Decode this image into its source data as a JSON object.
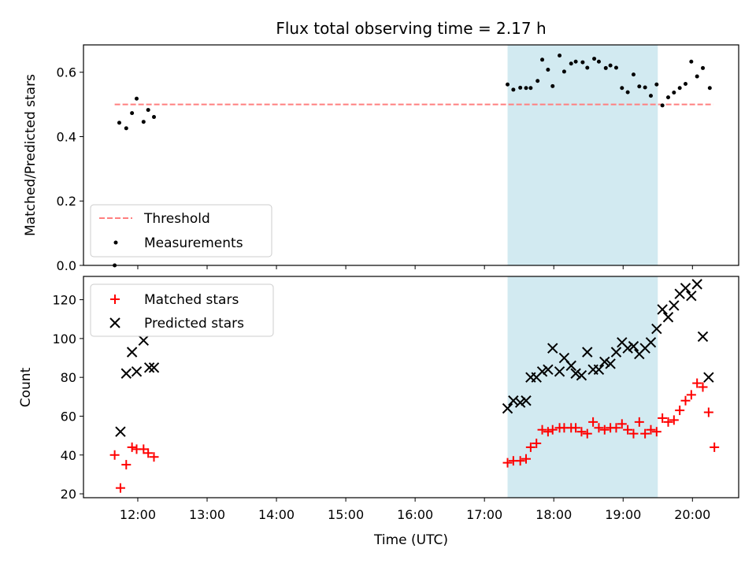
{
  "chart_data": [
    {
      "type": "scatter",
      "title": "Flux total observing time = 2.17 h",
      "ylabel": "Matched/Predicted stars",
      "xlabel": "",
      "xlim": [
        "11:13",
        "20:40"
      ],
      "ylim": [
        0,
        0.685
      ],
      "yticks": [
        "0.0",
        "0.2",
        "0.4",
        "0.6"
      ],
      "shaded_interval": [
        "17:20",
        "19:30"
      ],
      "threshold": {
        "name": "Threshold",
        "value": 0.5,
        "x_range": [
          "11:40",
          "20:18"
        ],
        "color": "#ff7f7f"
      },
      "legend": {
        "placement": "lower-left",
        "entries": [
          "Threshold",
          "Measurements"
        ]
      },
      "series": [
        {
          "name": "Measurements",
          "color": "#000000",
          "points": [
            [
              "11:40",
              0.0
            ],
            [
              "11:44",
              0.443
            ],
            [
              "11:50",
              0.426
            ],
            [
              "11:55",
              0.473
            ],
            [
              "11:59",
              0.518
            ],
            [
              "12:05",
              0.446
            ],
            [
              "12:09",
              0.483
            ],
            [
              "12:14",
              0.461
            ],
            [
              "17:20",
              0.562
            ],
            [
              "17:25",
              0.546
            ],
            [
              "17:31",
              0.552
            ],
            [
              "17:36",
              0.551
            ],
            [
              "17:40",
              0.551
            ],
            [
              "17:46",
              0.573
            ],
            [
              "17:50",
              0.639
            ],
            [
              "17:55",
              0.608
            ],
            [
              "17:59",
              0.557
            ],
            [
              "18:05",
              0.652
            ],
            [
              "18:09",
              0.602
            ],
            [
              "18:15",
              0.627
            ],
            [
              "18:19",
              0.633
            ],
            [
              "18:25",
              0.631
            ],
            [
              "18:29",
              0.614
            ],
            [
              "18:35",
              0.642
            ],
            [
              "18:39",
              0.633
            ],
            [
              "18:45",
              0.613
            ],
            [
              "18:49",
              0.621
            ],
            [
              "18:54",
              0.614
            ],
            [
              "18:59",
              0.551
            ],
            [
              "19:04",
              0.538
            ],
            [
              "19:09",
              0.593
            ],
            [
              "19:14",
              0.556
            ],
            [
              "19:19",
              0.553
            ],
            [
              "19:24",
              0.527
            ],
            [
              "19:29",
              0.562
            ],
            [
              "19:34",
              0.497
            ],
            [
              "19:39",
              0.522
            ],
            [
              "19:44",
              0.537
            ],
            [
              "19:49",
              0.551
            ],
            [
              "19:54",
              0.564
            ],
            [
              "19:59",
              0.633
            ],
            [
              "20:04",
              0.587
            ],
            [
              "20:09",
              0.613
            ],
            [
              "20:15",
              0.551
            ]
          ]
        }
      ]
    },
    {
      "type": "scatter",
      "title": "",
      "ylabel": "Count",
      "xlabel": "Time (UTC)",
      "xlim": [
        "11:13",
        "20:40"
      ],
      "ylim": [
        18,
        132
      ],
      "yticks": [
        "20",
        "40",
        "60",
        "80",
        "100",
        "120"
      ],
      "xticks": [
        "12:00",
        "13:00",
        "14:00",
        "15:00",
        "16:00",
        "17:00",
        "18:00",
        "19:00",
        "20:00"
      ],
      "shaded_interval": [
        "17:20",
        "19:30"
      ],
      "legend": {
        "placement": "upper-left",
        "entries": [
          "Matched stars",
          "Predicted stars"
        ]
      },
      "series": [
        {
          "name": "Matched stars",
          "marker": "+",
          "color": "#ff0000",
          "points": [
            [
              "11:40",
              40
            ],
            [
              "11:45",
              23
            ],
            [
              "11:50",
              35
            ],
            [
              "11:55",
              44
            ],
            [
              "11:59",
              43
            ],
            [
              "12:05",
              43
            ],
            [
              "12:09",
              41
            ],
            [
              "12:14",
              39
            ],
            [
              "17:20",
              36
            ],
            [
              "17:25",
              37
            ],
            [
              "17:31",
              37
            ],
            [
              "17:36",
              38
            ],
            [
              "17:40",
              44
            ],
            [
              "17:45",
              46
            ],
            [
              "17:50",
              53
            ],
            [
              "17:55",
              52
            ],
            [
              "17:59",
              53
            ],
            [
              "18:05",
              54
            ],
            [
              "18:09",
              54
            ],
            [
              "18:15",
              54
            ],
            [
              "18:19",
              54
            ],
            [
              "18:24",
              52
            ],
            [
              "18:29",
              51
            ],
            [
              "18:34",
              57
            ],
            [
              "18:39",
              54
            ],
            [
              "18:44",
              53
            ],
            [
              "18:49",
              54
            ],
            [
              "18:54",
              54
            ],
            [
              "18:59",
              56
            ],
            [
              "19:04",
              53
            ],
            [
              "19:09",
              51
            ],
            [
              "19:14",
              57
            ],
            [
              "19:19",
              51
            ],
            [
              "19:24",
              53
            ],
            [
              "19:29",
              52
            ],
            [
              "19:34",
              59
            ],
            [
              "19:39",
              57
            ],
            [
              "19:44",
              58
            ],
            [
              "19:49",
              63
            ],
            [
              "19:54",
              68
            ],
            [
              "19:59",
              71
            ],
            [
              "20:04",
              77
            ],
            [
              "20:09",
              75
            ],
            [
              "20:14",
              62
            ],
            [
              "20:19",
              44
            ]
          ]
        },
        {
          "name": "Predicted stars",
          "marker": "x",
          "color": "#000000",
          "points": [
            [
              "11:45",
              52
            ],
            [
              "11:50",
              82
            ],
            [
              "11:55",
              93
            ],
            [
              "11:59",
              83
            ],
            [
              "12:05",
              99
            ],
            [
              "12:10",
              85
            ],
            [
              "12:14",
              85
            ],
            [
              "17:20",
              64
            ],
            [
              "17:25",
              68
            ],
            [
              "17:31",
              67
            ],
            [
              "17:36",
              68
            ],
            [
              "17:40",
              80
            ],
            [
              "17:45",
              80
            ],
            [
              "17:50",
              83
            ],
            [
              "17:55",
              84
            ],
            [
              "17:59",
              95
            ],
            [
              "18:05",
              83
            ],
            [
              "18:09",
              90
            ],
            [
              "18:15",
              86
            ],
            [
              "18:19",
              82
            ],
            [
              "18:24",
              81
            ],
            [
              "18:29",
              93
            ],
            [
              "18:34",
              84
            ],
            [
              "18:39",
              84
            ],
            [
              "18:44",
              88
            ],
            [
              "18:49",
              87
            ],
            [
              "18:54",
              93
            ],
            [
              "18:59",
              98
            ],
            [
              "19:04",
              95
            ],
            [
              "19:09",
              96
            ],
            [
              "19:14",
              92
            ],
            [
              "19:19",
              95
            ],
            [
              "19:24",
              98
            ],
            [
              "19:29",
              105
            ],
            [
              "19:34",
              115
            ],
            [
              "19:39",
              111
            ],
            [
              "19:44",
              117
            ],
            [
              "19:49",
              123
            ],
            [
              "19:54",
              126
            ],
            [
              "19:59",
              122
            ],
            [
              "20:04",
              128
            ],
            [
              "20:09",
              101
            ],
            [
              "20:14",
              80
            ]
          ]
        }
      ]
    }
  ],
  "colors": {
    "shade": "#add8e6",
    "axis": "#000000"
  }
}
